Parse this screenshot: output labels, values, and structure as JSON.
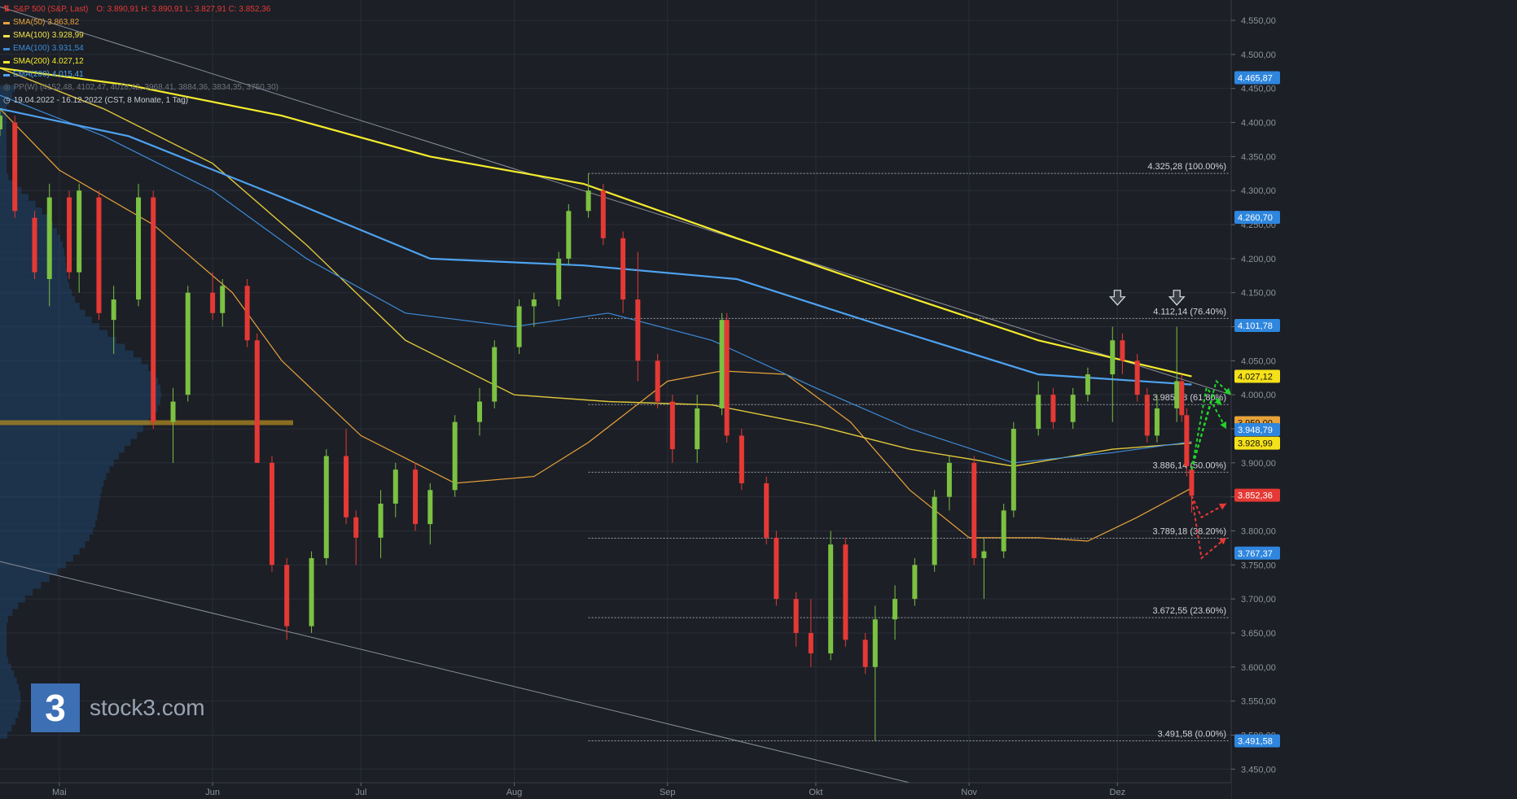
{
  "header": {
    "instrument": "S&P 500 (S&P, Last)",
    "ohlc": "O: 3.890,91   H: 3.890,91   L: 3.827,91   C: 3.852,36",
    "indicators": [
      {
        "label": "SMA(50)",
        "value": "3.863,82",
        "color": "#e8a23a"
      },
      {
        "label": "SMA(100)",
        "value": "3.928,99",
        "color": "#f2e34a"
      },
      {
        "label": "EMA(100)",
        "value": "3.931,54",
        "color": "#3d8bd9"
      },
      {
        "label": "SMA(200)",
        "value": "4.027,12",
        "color": "#f5ec2c"
      },
      {
        "label": "EMA(200)",
        "value": "4.015,41",
        "color": "#4ea2f0"
      }
    ],
    "pivot": "PP(W)  (4152,48, 4102,47, 4018,42, 3968,41, 3884,36, 3834,35, 3750,30)",
    "range": "19.04.2022 - 16.12.2022    (CST, 8 Monate, 1 Tag)"
  },
  "logo": {
    "mark": "3",
    "text": "stock3.com"
  },
  "chart_data": {
    "type": "candlestick",
    "ylim": [
      3430,
      4580
    ],
    "y_ticks": [
      3450,
      3500,
      3550,
      3600,
      3650,
      3700,
      3750,
      3800,
      3850,
      3900,
      3950,
      4000,
      4050,
      4100,
      4150,
      4200,
      4250,
      4300,
      4350,
      4400,
      4450,
      4500,
      4550
    ],
    "y_tick_labels": [
      "3.450,00",
      "3.500,00",
      "3.550,00",
      "3.600,00",
      "3.650,00",
      "3.700,00",
      "3.750,00",
      "3.800,00",
      "3.850,00",
      "3.900,00",
      "3.950,00",
      "4.000,00",
      "4.050,00",
      "4.100,00",
      "4.150,00",
      "4.200,00",
      "4.250,00",
      "4.300,00",
      "4.350,00",
      "4.400,00",
      "4.450,00",
      "4.500,00",
      "4.550,00"
    ],
    "x_labels": [
      "Mai",
      "Jun",
      "Jul",
      "Aug",
      "Sep",
      "Okt",
      "Nov",
      "Dez"
    ],
    "x_label_dates": [
      "2022-05-01",
      "2022-06-01",
      "2022-07-01",
      "2022-08-01",
      "2022-09-01",
      "2022-10-01",
      "2022-11-01",
      "2022-12-01"
    ],
    "x_range": [
      "2022-04-19",
      "2022-12-24"
    ],
    "fib_levels": [
      {
        "value": 4325.28,
        "label": "4.325,28 (100.00%)"
      },
      {
        "value": 4112.14,
        "label": "4.112,14 (76.40%)"
      },
      {
        "value": 3985.58,
        "label": "3.985,58 (61.80%)"
      },
      {
        "value": 3886.14,
        "label": "3.886,14 (50.00%)"
      },
      {
        "value": 3789.18,
        "label": "3.789,18 (38.20%)"
      },
      {
        "value": 3672.55,
        "label": "3.672,55 (23.60%)"
      },
      {
        "value": 3491.58,
        "label": "3.491,58 (0.00%)"
      }
    ],
    "fib_start_date": "2022-08-16",
    "price_badges": [
      {
        "value": 4465.87,
        "label": "4.465,87",
        "color": "#2e86de"
      },
      {
        "value": 4260.7,
        "label": "4.260,70",
        "color": "#2e86de"
      },
      {
        "value": 4101.78,
        "label": "4.101,78",
        "color": "#2e86de"
      },
      {
        "value": 4027.12,
        "label": "4.027,12",
        "color": "#f5e11a"
      },
      {
        "value": 3959.0,
        "label": "3.959,00",
        "color": "#e8a23a"
      },
      {
        "value": 3948.79,
        "label": "3.948,79",
        "color": "#2e86de"
      },
      {
        "value": 3928.99,
        "label": "3.928,99",
        "color": "#f5e11a"
      },
      {
        "value": 3852.36,
        "label": "3.852,36",
        "color": "#e53935"
      },
      {
        "value": 3767.37,
        "label": "3.767,37",
        "color": "#2e86de"
      },
      {
        "value": 3491.58,
        "label": "3.491,58",
        "color": "#2e86de"
      }
    ],
    "candles": [
      [
        "2022-04-19",
        4390,
        4420,
        4380,
        4410
      ],
      [
        "2022-04-22",
        4400,
        4410,
        4260,
        4270
      ],
      [
        "2022-04-26",
        4260,
        4270,
        4170,
        4180
      ],
      [
        "2022-04-29",
        4170,
        4310,
        4130,
        4290
      ],
      [
        "2022-05-03",
        4290,
        4300,
        4170,
        4180
      ],
      [
        "2022-05-05",
        4180,
        4310,
        4150,
        4300
      ],
      [
        "2022-05-09",
        4290,
        4300,
        4110,
        4120
      ],
      [
        "2022-05-12",
        4110,
        4160,
        4060,
        4140
      ],
      [
        "2022-05-17",
        4140,
        4310,
        4130,
        4290
      ],
      [
        "2022-05-20",
        4290,
        4300,
        3950,
        3960
      ],
      [
        "2022-05-24",
        3960,
        4010,
        3900,
        3990
      ],
      [
        "2022-05-27",
        4000,
        4160,
        3990,
        4150
      ],
      [
        "2022-06-01",
        4150,
        4180,
        4110,
        4120
      ],
      [
        "2022-06-03",
        4120,
        4170,
        4100,
        4160
      ],
      [
        "2022-06-08",
        4160,
        4170,
        4070,
        4080
      ],
      [
        "2022-06-10",
        4080,
        4090,
        3900,
        3900
      ],
      [
        "2022-06-13",
        3900,
        3910,
        3740,
        3750
      ],
      [
        "2022-06-16",
        3750,
        3760,
        3640,
        3660
      ],
      [
        "2022-06-21",
        3660,
        3770,
        3650,
        3760
      ],
      [
        "2022-06-24",
        3760,
        3920,
        3750,
        3910
      ],
      [
        "2022-06-28",
        3910,
        3950,
        3810,
        3820
      ],
      [
        "2022-06-30",
        3820,
        3830,
        3750,
        3790
      ],
      [
        "2022-07-05",
        3790,
        3860,
        3760,
        3840
      ],
      [
        "2022-07-08",
        3840,
        3900,
        3820,
        3890
      ],
      [
        "2022-07-12",
        3890,
        3900,
        3800,
        3810
      ],
      [
        "2022-07-15",
        3810,
        3870,
        3780,
        3860
      ],
      [
        "2022-07-20",
        3860,
        3970,
        3850,
        3960
      ],
      [
        "2022-07-25",
        3960,
        4010,
        3940,
        3990
      ],
      [
        "2022-07-28",
        3990,
        4080,
        3980,
        4070
      ],
      [
        "2022-08-02",
        4070,
        4140,
        4060,
        4130
      ],
      [
        "2022-08-05",
        4130,
        4150,
        4100,
        4140
      ],
      [
        "2022-08-10",
        4140,
        4210,
        4130,
        4200
      ],
      [
        "2022-08-12",
        4200,
        4280,
        4190,
        4270
      ],
      [
        "2022-08-16",
        4270,
        4325,
        4260,
        4300
      ],
      [
        "2022-08-19",
        4300,
        4310,
        4220,
        4230
      ],
      [
        "2022-08-23",
        4230,
        4240,
        4120,
        4140
      ],
      [
        "2022-08-26",
        4140,
        4210,
        4020,
        4050
      ],
      [
        "2022-08-30",
        4050,
        4060,
        3980,
        3990
      ],
      [
        "2022-09-02",
        3990,
        4000,
        3900,
        3920
      ],
      [
        "2022-09-07",
        3920,
        4000,
        3900,
        3980
      ],
      [
        "2022-09-12",
        3980,
        4120,
        3970,
        4110
      ],
      [
        "2022-09-13",
        4110,
        4120,
        3930,
        3940
      ],
      [
        "2022-09-16",
        3940,
        3950,
        3860,
        3870
      ],
      [
        "2022-09-21",
        3870,
        3880,
        3780,
        3790
      ],
      [
        "2022-09-23",
        3790,
        3800,
        3690,
        3700
      ],
      [
        "2022-09-27",
        3700,
        3710,
        3630,
        3650
      ],
      [
        "2022-09-30",
        3650,
        3700,
        3600,
        3620
      ],
      [
        "2022-10-04",
        3620,
        3800,
        3610,
        3780
      ],
      [
        "2022-10-07",
        3780,
        3790,
        3630,
        3640
      ],
      [
        "2022-10-11",
        3640,
        3650,
        3590,
        3600
      ],
      [
        "2022-10-13",
        3600,
        3690,
        3491,
        3670
      ],
      [
        "2022-10-17",
        3670,
        3720,
        3640,
        3700
      ],
      [
        "2022-10-21",
        3700,
        3760,
        3690,
        3750
      ],
      [
        "2022-10-25",
        3750,
        3860,
        3740,
        3850
      ],
      [
        "2022-10-28",
        3850,
        3910,
        3830,
        3900
      ],
      [
        "2022-11-02",
        3900,
        3910,
        3750,
        3760
      ],
      [
        "2022-11-04",
        3760,
        3790,
        3700,
        3770
      ],
      [
        "2022-11-08",
        3770,
        3840,
        3760,
        3830
      ],
      [
        "2022-11-10",
        3830,
        3960,
        3820,
        3950
      ],
      [
        "2022-11-15",
        3950,
        4020,
        3940,
        4000
      ],
      [
        "2022-11-18",
        4000,
        4010,
        3950,
        3960
      ],
      [
        "2022-11-22",
        3960,
        4010,
        3950,
        4000
      ],
      [
        "2022-11-25",
        4000,
        4040,
        3990,
        4030
      ],
      [
        "2022-11-30",
        4030,
        4100,
        3960,
        4080
      ],
      [
        "2022-12-02",
        4080,
        4090,
        4030,
        4050
      ],
      [
        "2022-12-05",
        4050,
        4060,
        3990,
        4000
      ],
      [
        "2022-12-07",
        4000,
        4010,
        3930,
        3940
      ],
      [
        "2022-12-09",
        3940,
        4000,
        3930,
        3980
      ],
      [
        "2022-12-13",
        3980,
        4100,
        3960,
        4020
      ],
      [
        "2022-12-14",
        4020,
        4030,
        3960,
        3970
      ],
      [
        "2022-12-15",
        3970,
        3980,
        3880,
        3895
      ],
      [
        "2022-12-16",
        3890,
        3890,
        3827,
        3852
      ]
    ],
    "series": [
      {
        "name": "SMA(50)",
        "color": "#e8a23a",
        "width": 1.2,
        "points": [
          [
            "2022-04-19",
            4420
          ],
          [
            "2022-05-01",
            4330
          ],
          [
            "2022-05-20",
            4250
          ],
          [
            "2022-06-05",
            4150
          ],
          [
            "2022-06-15",
            4050
          ],
          [
            "2022-07-01",
            3940
          ],
          [
            "2022-07-20",
            3870
          ],
          [
            "2022-08-05",
            3880
          ],
          [
            "2022-08-16",
            3930
          ],
          [
            "2022-09-01",
            4020
          ],
          [
            "2022-09-12",
            4035
          ],
          [
            "2022-09-25",
            4030
          ],
          [
            "2022-10-08",
            3960
          ],
          [
            "2022-10-20",
            3860
          ],
          [
            "2022-11-01",
            3790
          ],
          [
            "2022-11-15",
            3790
          ],
          [
            "2022-11-25",
            3785
          ],
          [
            "2022-12-05",
            3820
          ],
          [
            "2022-12-16",
            3863
          ]
        ]
      },
      {
        "name": "SMA(100)",
        "color": "#e0c83a",
        "width": 1.4,
        "points": [
          [
            "2022-04-19",
            4480
          ],
          [
            "2022-05-10",
            4420
          ],
          [
            "2022-06-01",
            4340
          ],
          [
            "2022-06-20",
            4220
          ],
          [
            "2022-07-10",
            4080
          ],
          [
            "2022-08-01",
            4000
          ],
          [
            "2022-08-20",
            3990
          ],
          [
            "2022-09-10",
            3985
          ],
          [
            "2022-10-01",
            3955
          ],
          [
            "2022-10-20",
            3920
          ],
          [
            "2022-11-10",
            3895
          ],
          [
            "2022-11-30",
            3920
          ],
          [
            "2022-12-16",
            3929
          ]
        ]
      },
      {
        "name": "EMA(100)",
        "color": "#3d8bd9",
        "width": 1.2,
        "points": [
          [
            "2022-04-19",
            4440
          ],
          [
            "2022-05-10",
            4380
          ],
          [
            "2022-06-01",
            4300
          ],
          [
            "2022-06-20",
            4200
          ],
          [
            "2022-07-10",
            4120
          ],
          [
            "2022-08-01",
            4100
          ],
          [
            "2022-08-20",
            4120
          ],
          [
            "2022-09-10",
            4080
          ],
          [
            "2022-10-01",
            4010
          ],
          [
            "2022-10-20",
            3950
          ],
          [
            "2022-11-10",
            3900
          ],
          [
            "2022-11-30",
            3915
          ],
          [
            "2022-12-16",
            3931
          ]
        ]
      },
      {
        "name": "SMA(200)",
        "color": "#f5ec2c",
        "width": 2.2,
        "points": [
          [
            "2022-04-19",
            4480
          ],
          [
            "2022-05-15",
            4455
          ],
          [
            "2022-06-15",
            4410
          ],
          [
            "2022-07-15",
            4350
          ],
          [
            "2022-08-15",
            4310
          ],
          [
            "2022-09-15",
            4230
          ],
          [
            "2022-10-15",
            4155
          ],
          [
            "2022-11-15",
            4080
          ],
          [
            "2022-12-16",
            4027
          ]
        ]
      },
      {
        "name": "EMA(200)",
        "color": "#4ea2f0",
        "width": 2.2,
        "points": [
          [
            "2022-04-19",
            4420
          ],
          [
            "2022-05-15",
            4380
          ],
          [
            "2022-06-15",
            4290
          ],
          [
            "2022-07-15",
            4200
          ],
          [
            "2022-08-15",
            4190
          ],
          [
            "2022-09-15",
            4170
          ],
          [
            "2022-10-15",
            4100
          ],
          [
            "2022-11-15",
            4030
          ],
          [
            "2022-12-16",
            4015
          ]
        ]
      }
    ],
    "trendlines": [
      {
        "from": [
          "2022-04-19",
          4570
        ],
        "to": [
          "2022-12-24",
          4000
        ],
        "color": "#8a8f99"
      },
      {
        "from": [
          "2022-04-19",
          3755
        ],
        "to": [
          "2022-10-20",
          3430
        ],
        "color": "#8a8f99"
      }
    ],
    "projections": [
      {
        "color": "#22d32a",
        "points": [
          [
            "2022-12-16",
            3890
          ],
          [
            "2022-12-20",
            3990
          ],
          [
            "2022-12-23",
            3950
          ]
        ]
      },
      {
        "color": "#22d32a",
        "points": [
          [
            "2022-12-16",
            3890
          ],
          [
            "2022-12-19",
            4010
          ],
          [
            "2022-12-22",
            3985
          ]
        ]
      },
      {
        "color": "#22d32a",
        "points": [
          [
            "2022-12-16",
            3890
          ],
          [
            "2022-12-21",
            4020
          ],
          [
            "2022-12-24",
            4000
          ]
        ]
      },
      {
        "color": "#e53935",
        "points": [
          [
            "2022-12-16",
            3852
          ],
          [
            "2022-12-18",
            3760
          ],
          [
            "2022-12-23",
            3790
          ]
        ]
      },
      {
        "color": "#e53935",
        "points": [
          [
            "2022-12-16",
            3852
          ],
          [
            "2022-12-18",
            3820
          ],
          [
            "2022-12-23",
            3840
          ]
        ]
      }
    ],
    "markers": [
      {
        "date": "2022-12-01",
        "value": 4120,
        "icon": "down-arrow"
      },
      {
        "date": "2022-12-13",
        "value": 4120,
        "icon": "down-arrow"
      }
    ],
    "volume_profile_peak": 3959,
    "grid": true
  }
}
